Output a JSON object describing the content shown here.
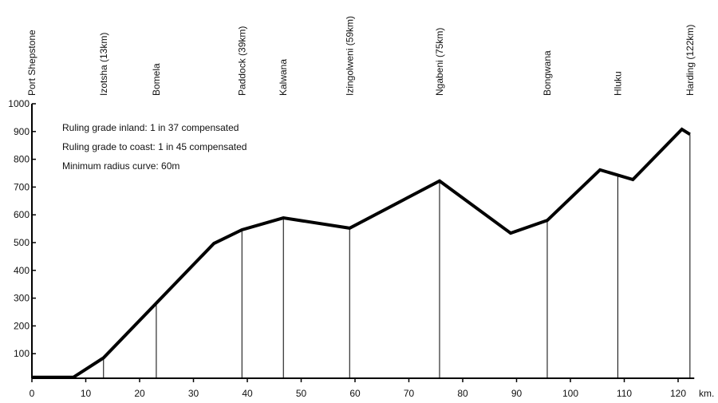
{
  "chart_data": {
    "type": "line",
    "xlabel": "km.",
    "ylabel": "",
    "xlim": [
      0,
      122
    ],
    "ylim": [
      0,
      1000
    ],
    "grid": false,
    "x_ticks": [
      0,
      10,
      20,
      30,
      40,
      50,
      60,
      70,
      80,
      90,
      100,
      110,
      120
    ],
    "y_ticks": [
      100,
      200,
      300,
      400,
      500,
      600,
      700,
      800,
      900,
      1000
    ],
    "series": [
      {
        "x": [
          0,
          7.7,
          13.3,
          33.8,
          39,
          46.7,
          59,
          75.7,
          88.9,
          95.7,
          105.5,
          111.6,
          120.7,
          122.2
        ],
        "y": [
          15,
          15,
          85,
          497,
          546,
          589,
          552,
          722,
          534,
          580,
          762,
          727,
          908,
          890
        ]
      }
    ],
    "stations": [
      {
        "label": "Port Shepstone",
        "km": 0
      },
      {
        "label": "Izotsha (13km)",
        "km": 13.3
      },
      {
        "label": "Bomela",
        "km": 23.1
      },
      {
        "label": "Paddock (39km)",
        "km": 39
      },
      {
        "label": "Kalwana",
        "km": 46.7
      },
      {
        "label": "Izingolweni (59km)",
        "km": 59
      },
      {
        "label": "Ngabeni (75km)",
        "km": 75.7
      },
      {
        "label": "Bongwana",
        "km": 95.7
      },
      {
        "label": "Hluku",
        "km": 108.8
      },
      {
        "label": "Harding (122km)",
        "km": 122.2
      }
    ],
    "annotations": [
      "Ruling grade inland: 1 in 37 compensated",
      "Ruling grade to coast: 1 in 45 compensated",
      "Minimum radius curve: 60m"
    ],
    "line_color": "#000000"
  }
}
